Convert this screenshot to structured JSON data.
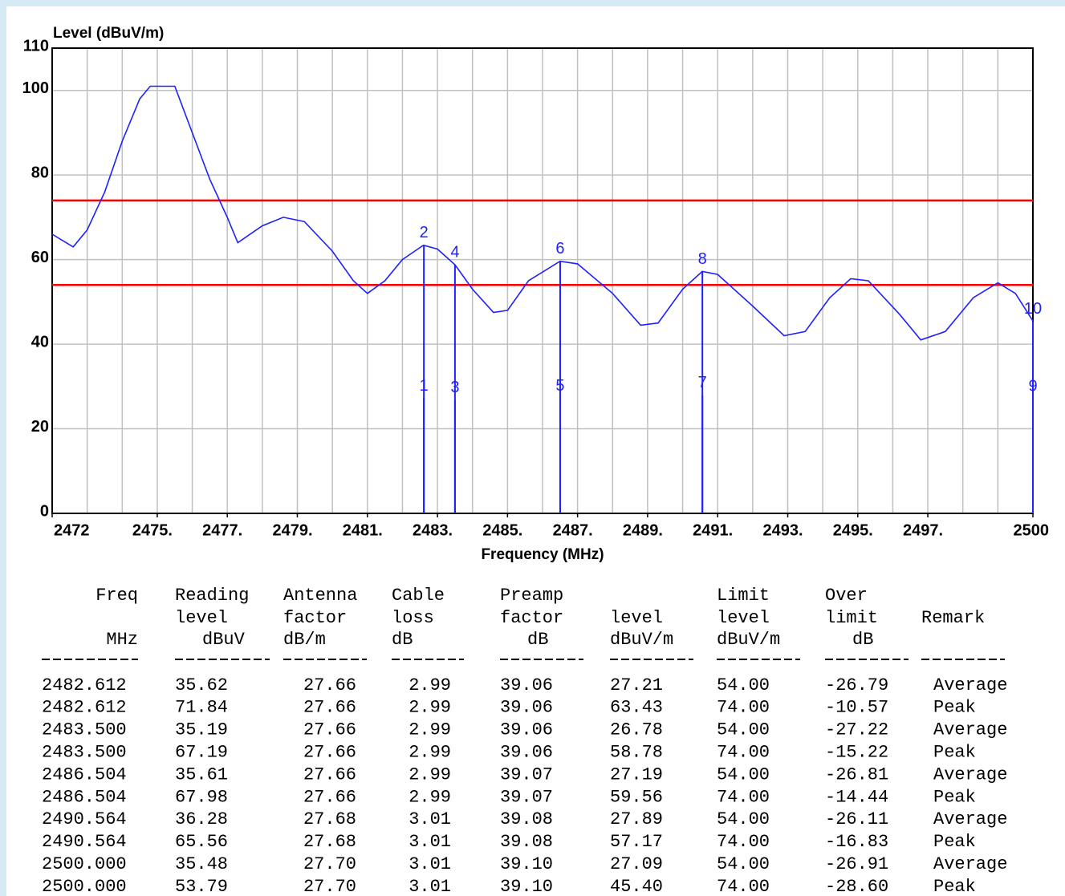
{
  "chart_data": {
    "type": "line",
    "y_label": "Level (dBuV/m)",
    "x_label": "Frequency (MHz)",
    "xlim": [
      2472,
      2500
    ],
    "ylim": [
      0,
      110
    ],
    "yticks": [
      0,
      20,
      40,
      60,
      80,
      100,
      110
    ],
    "xticks": [
      2472,
      {
        "value": 2475,
        "label": "2475."
      },
      {
        "value": 2477,
        "label": "2477."
      },
      {
        "value": 2479,
        "label": "2479."
      },
      {
        "value": 2481,
        "label": "2481."
      },
      {
        "value": 2483,
        "label": "2483."
      },
      {
        "value": 2485,
        "label": "2485."
      },
      {
        "value": 2487,
        "label": "2487."
      },
      {
        "value": 2489,
        "label": "2489."
      },
      {
        "value": 2491,
        "label": "2491."
      },
      {
        "value": 2493,
        "label": "2493."
      },
      {
        "value": 2495,
        "label": "2495."
      },
      {
        "value": 2497,
        "label": "2497."
      },
      2500
    ],
    "xgrid": [
      2473,
      2474,
      2475,
      2476,
      2477,
      2478,
      2479,
      2480,
      2481,
      2482,
      2483,
      2484,
      2485,
      2486,
      2487,
      2488,
      2489,
      2490,
      2491,
      2492,
      2493,
      2494,
      2495,
      2496,
      2497,
      2498,
      2499
    ],
    "grid": true,
    "color": "#1f1fff",
    "x": [
      2472,
      2472.6,
      2473,
      2473.5,
      2474,
      2474.5,
      2474.8,
      2475.5,
      2476,
      2476.5,
      2477,
      2477.3,
      2478,
      2478.6,
      2479.2,
      2480,
      2480.6,
      2481,
      2481.5,
      2482,
      2482.6,
      2483,
      2483.5,
      2484,
      2484.6,
      2485,
      2485.6,
      2486.5,
      2487,
      2488,
      2488.8,
      2489.3,
      2490,
      2490.56,
      2491,
      2492,
      2492.9,
      2493.5,
      2494.2,
      2494.8,
      2495.3,
      2496.2,
      2496.8,
      2497.5,
      2498.3,
      2499,
      2499.5,
      2500
    ],
    "values": [
      66,
      63,
      67,
      76,
      88,
      98,
      101,
      101,
      90,
      79,
      70,
      64,
      68,
      70,
      69,
      62,
      55,
      52,
      55,
      60,
      63.4,
      62.5,
      58.8,
      53,
      47.5,
      48,
      55,
      59.6,
      59,
      52,
      44.5,
      45,
      53,
      57.2,
      56.5,
      49,
      42,
      43,
      51,
      55.5,
      55,
      47,
      41,
      43,
      51,
      54.5,
      52,
      45.5
    ],
    "limit_lines": {
      "color": "#ff0000",
      "values": [
        74,
        54
      ]
    },
    "markers": {
      "color": "#1f1fff",
      "labels": [
        "1",
        "2",
        "3",
        "4",
        "5",
        "6",
        "7",
        "8",
        "9",
        "10"
      ],
      "x": [
        2482.612,
        2482.612,
        2483.5,
        2483.5,
        2486.504,
        2486.504,
        2490.564,
        2490.564,
        2500,
        2500
      ],
      "values": [
        27.21,
        63.43,
        26.78,
        58.78,
        27.19,
        59.56,
        27.89,
        57.17,
        27.09,
        45.4
      ]
    }
  },
  "table": {
    "columns": [
      {
        "top": "Freq",
        "unit": "MHz"
      },
      {
        "top": "Reading",
        "mid": "level",
        "unit": "dBuV"
      },
      {
        "top": "Antenna",
        "mid": "factor",
        "unit": "dB/m"
      },
      {
        "top": "Cable",
        "mid": "loss",
        "unit": "dB"
      },
      {
        "top": "Preamp",
        "mid": "factor",
        "unit": "dB"
      },
      {
        "mid": "level",
        "unit": "dBuV/m"
      },
      {
        "top": "Limit",
        "mid": "level",
        "unit": "dBuV/m"
      },
      {
        "top": "Over",
        "mid": "limit",
        "unit": "dB"
      },
      {
        "mid": "Remark"
      }
    ],
    "rows": [
      [
        "2482.612",
        "35.62",
        "27.66",
        "2.99",
        "39.06",
        "27.21",
        "54.00",
        "-26.79",
        "Average"
      ],
      [
        "2482.612",
        "71.84",
        "27.66",
        "2.99",
        "39.06",
        "63.43",
        "74.00",
        "-10.57",
        "Peak"
      ],
      [
        "2483.500",
        "35.19",
        "27.66",
        "2.99",
        "39.06",
        "26.78",
        "54.00",
        "-27.22",
        "Average"
      ],
      [
        "2483.500",
        "67.19",
        "27.66",
        "2.99",
        "39.06",
        "58.78",
        "74.00",
        "-15.22",
        "Peak"
      ],
      [
        "2486.504",
        "35.61",
        "27.66",
        "2.99",
        "39.07",
        "27.19",
        "54.00",
        "-26.81",
        "Average"
      ],
      [
        "2486.504",
        "67.98",
        "27.66",
        "2.99",
        "39.07",
        "59.56",
        "74.00",
        "-14.44",
        "Peak"
      ],
      [
        "2490.564",
        "36.28",
        "27.68",
        "3.01",
        "39.08",
        "27.89",
        "54.00",
        "-26.11",
        "Average"
      ],
      [
        "2490.564",
        "65.56",
        "27.68",
        "3.01",
        "39.08",
        "57.17",
        "74.00",
        "-16.83",
        "Peak"
      ],
      [
        "2500.000",
        "35.48",
        "27.70",
        "3.01",
        "39.10",
        "27.09",
        "54.00",
        "-26.91",
        "Average"
      ],
      [
        "2500.000",
        "53.79",
        "27.70",
        "3.01",
        "39.10",
        "45.40",
        "74.00",
        "-28.60",
        "Peak"
      ]
    ]
  }
}
